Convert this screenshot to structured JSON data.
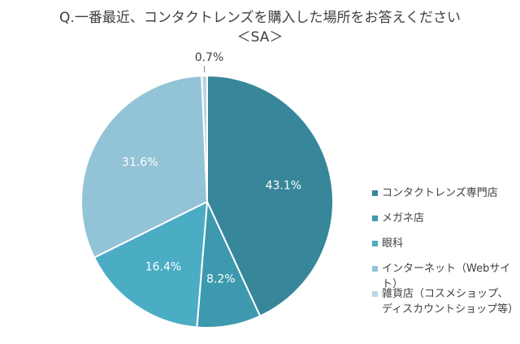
{
  "chart_data": {
    "type": "pie",
    "title": "Q.一番最近、コンタクトレンズを購入した場所をお答えください",
    "subtitle": "＜SA＞",
    "start": "12 o'clock, clockwise",
    "legend_position": "right",
    "slices": [
      {
        "label": "コンタクトレンズ専門店",
        "value": 43.1,
        "data_label": "43.1%",
        "color": "#37869a"
      },
      {
        "label": "メガネ店",
        "value": 8.2,
        "data_label": "8.2%",
        "color": "#3d99ad"
      },
      {
        "label": "眼科",
        "value": 16.4,
        "data_label": "16.4%",
        "color": "#4badc4"
      },
      {
        "label": "インターネット（Webサイト）",
        "value": 31.6,
        "data_label": "31.6%",
        "color": "#93c3d6"
      },
      {
        "label": "雑貨店（コスメショップ、\nディスカウントショップ等）",
        "value": 0.7,
        "data_label": "0.7%",
        "color": "#b8d8e3"
      }
    ]
  }
}
